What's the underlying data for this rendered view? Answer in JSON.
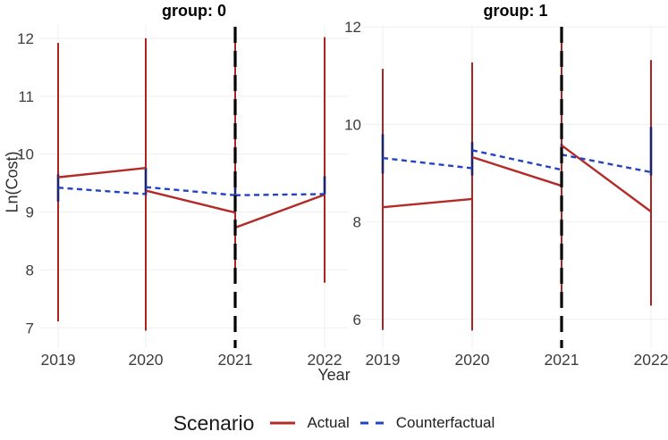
{
  "chart_data": {
    "type": "line",
    "title": "",
    "xlabel": "Year",
    "ylabel": "Ln(Cost)",
    "x_categories": [
      "2019",
      "2020",
      "2021",
      "2022"
    ],
    "intervention_year": "2021",
    "legend": {
      "title": "Scenario",
      "position": "bottom",
      "items": [
        {
          "label": "Actual",
          "color": "#b42a27",
          "line_style": "solid"
        },
        {
          "label": "Counterfactual",
          "color": "#2443c4",
          "line_style": "dashed"
        }
      ]
    },
    "colors": {
      "background": "#ffffff",
      "actual_line": "#b42a27",
      "actual_ci": "#ab2420",
      "counterfactual_line": "#2443c4",
      "counterfactual_ci": "#1d2366",
      "intervention_vline": "#000000",
      "gridline": "#f2f1f1",
      "tick_text": "#3d3d3d",
      "strip_text": "#000000"
    },
    "facets": [
      {
        "label": "group: 0",
        "years": [
          "2019",
          "2020",
          "2021",
          "2022"
        ],
        "yticks": [
          12,
          11,
          10,
          9,
          8,
          7
        ],
        "ylim": [
          6.65,
          12.23
        ],
        "vline_year_index": 2,
        "series": [
          {
            "name": "Actual",
            "style": "solid",
            "segments": [
              [
                [
                  0,
                  9.6
                ],
                [
                  1,
                  9.76
                ]
              ],
              [
                [
                  1,
                  9.37
                ],
                [
                  2,
                  8.99
                ]
              ],
              [
                [
                  2,
                  8.73
                ],
                [
                  3,
                  9.3
                ]
              ]
            ]
          },
          {
            "name": "Counterfactual",
            "style": "dashed",
            "segments": [
              [
                [
                  0,
                  9.42
                ],
                [
                  1,
                  9.31
                ]
              ],
              [
                [
                  1,
                  9.43
                ],
                [
                  2,
                  9.29
                ]
              ],
              [
                [
                  2,
                  9.29
                ],
                [
                  3,
                  9.31
                ]
              ]
            ]
          }
        ],
        "error_bars": {
          "actual": [
            [
              7.11,
              11.92
            ],
            [
              6.95,
              12.0
            ],
            [
              7.85,
              11.97
            ],
            [
              7.78,
              12.02
            ]
          ],
          "counterfactual": [
            [
              9.18,
              9.65
            ],
            [
              9.29,
              9.76
            ],
            [
              9.05,
              9.55
            ],
            [
              9.31,
              9.62
            ]
          ]
        }
      },
      {
        "label": "group: 1",
        "years": [
          "2019",
          "2020",
          "2021",
          "2022"
        ],
        "yticks": [
          12,
          10,
          8,
          6
        ],
        "ylim": [
          5.41,
          12.04
        ],
        "vline_year_index": 2,
        "series": [
          {
            "name": "Actual",
            "style": "solid",
            "segments": [
              [
                [
                  0,
                  8.3
                ],
                [
                  1,
                  8.47
                ]
              ],
              [
                [
                  1,
                  9.33
                ],
                [
                  2,
                  8.74
                ]
              ],
              [
                [
                  2,
                  9.57
                ],
                [
                  3,
                  8.21
                ]
              ]
            ]
          },
          {
            "name": "Counterfactual",
            "style": "dashed",
            "segments": [
              [
                [
                  0,
                  9.31
                ],
                [
                  1,
                  9.1
                ]
              ],
              [
                [
                  1,
                  9.47
                ],
                [
                  2,
                  9.07
                ]
              ],
              [
                [
                  2,
                  9.38
                ],
                [
                  3,
                  9.02
                ]
              ]
            ]
          }
        ],
        "error_bars": {
          "actual": [
            [
              5.78,
              11.14
            ],
            [
              5.77,
              11.27
            ],
            [
              6.48,
              11.75
            ],
            [
              6.28,
              11.32
            ]
          ],
          "counterfactual": [
            [
              8.99,
              9.8
            ],
            [
              8.95,
              9.64
            ],
            [
              9.25,
              9.6
            ],
            [
              8.95,
              9.95
            ]
          ]
        }
      }
    ]
  }
}
